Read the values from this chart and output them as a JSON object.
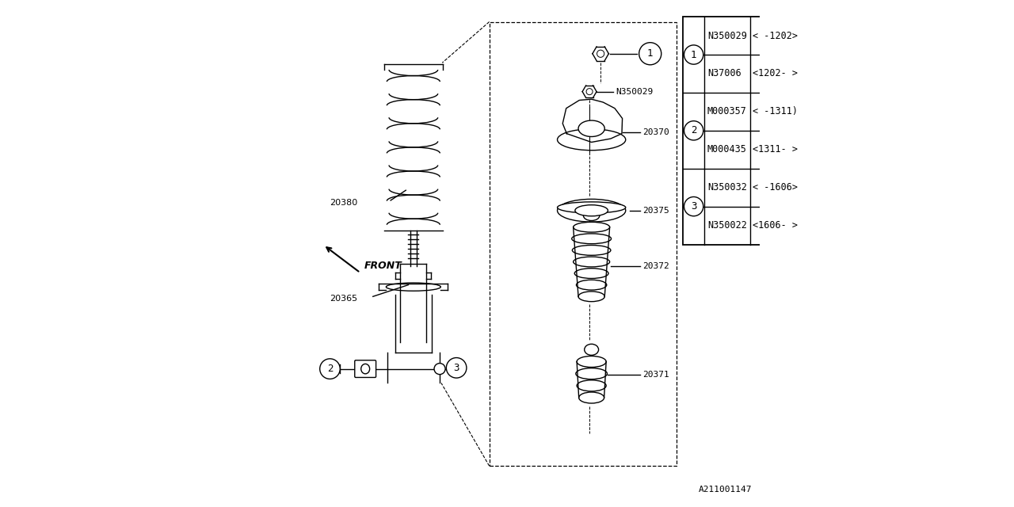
{
  "bg_color": "#ffffff",
  "line_color": "#000000",
  "diagram_code": "A211001147",
  "table": {
    "rows": [
      {
        "num": 1,
        "parts": [
          {
            "pn": "N350029",
            "date": "< -1202>"
          },
          {
            "pn": "N37006",
            "date": "<1202- >"
          }
        ]
      },
      {
        "num": 2,
        "parts": [
          {
            "pn": "M000357",
            "date": "< -1311)"
          },
          {
            "pn": "M000435",
            "date": "<1311- >"
          }
        ]
      },
      {
        "num": 3,
        "parts": [
          {
            "pn": "N350032",
            "date": "< -1606>"
          },
          {
            "pn": "N350022",
            "date": "<1606- >"
          }
        ]
      }
    ]
  }
}
